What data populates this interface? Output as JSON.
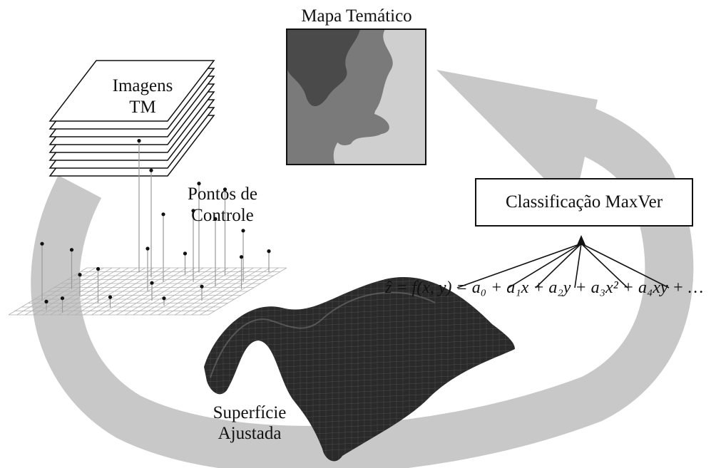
{
  "labels": {
    "thematic_map": "Mapa Temático",
    "images": [
      "Imagens",
      "TM"
    ],
    "control_points": [
      "Pontos de",
      "Controle"
    ],
    "fitted_surface": [
      "Superfície",
      "Ajustada"
    ],
    "classification": "Classificação MaxVer"
  },
  "formula": "ẑ = f(x, y) = a₀ + a₁x + a₂y + a₃x² + a₄xy + …",
  "colors": {
    "cycle_arrow": "#c8c8c8",
    "map_dark": "#4a4a4a",
    "map_mid": "#7a7a7a",
    "map_light": "#b8b8b8",
    "map_lightest": "#cfcfcf",
    "surface": "#2a2a2a",
    "ink": "#111111"
  }
}
